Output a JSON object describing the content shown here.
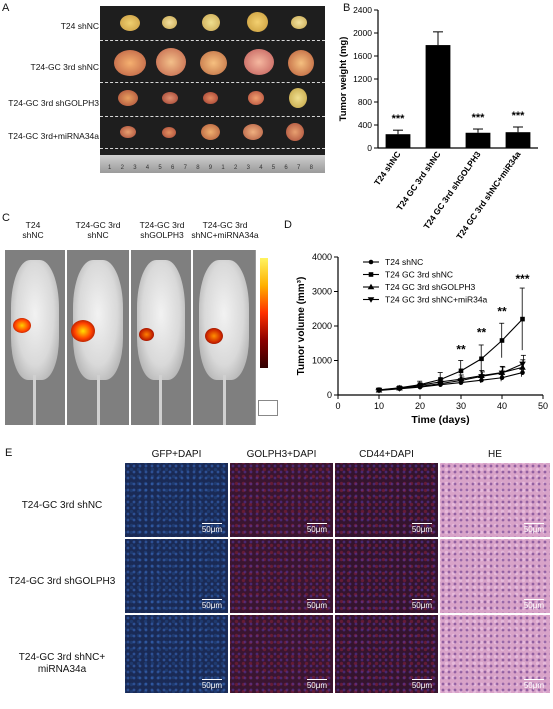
{
  "panels": {
    "a": "A",
    "b": "B",
    "c": "C",
    "d": "D",
    "e": "E"
  },
  "panelA": {
    "rows": [
      "T24 shNC",
      "T24-GC 3rd shNC",
      "T24-GC 3rd shGOLPH3",
      "T24-GC 3rd+miRNA34a"
    ],
    "ruler": [
      "1",
      "2",
      "3",
      "4",
      "5",
      "6",
      "7",
      "8",
      "9",
      "1",
      "2",
      "3",
      "4",
      "5",
      "6",
      "7",
      "8"
    ]
  },
  "panelC": {
    "columns": [
      [
        "T24",
        "shNC"
      ],
      [
        "T24-GC 3rd",
        "shNC"
      ],
      [
        "T24-GC 3rd",
        "shGOLPH3"
      ],
      [
        "T24-GC 3rd",
        "shNC+miRNA34a"
      ]
    ]
  },
  "panelE": {
    "columns": [
      "GFP+DAPI",
      "GOLPH3+DAPI",
      "CD44+DAPI",
      "HE"
    ],
    "rows": [
      [
        "T24-GC 3rd shNC"
      ],
      [
        "T24-GC 3rd shGOLPH3"
      ],
      [
        "T24-GC 3rd shNC+",
        "miRNA34a"
      ]
    ],
    "scalebar": "50μm"
  },
  "colors": {
    "gfp": "#1a2a55",
    "golph3": "#3a1530",
    "cd44": "#34142e",
    "he": "#d8a3c8"
  },
  "chart_data": [
    {
      "type": "bar",
      "categories": [
        "T24 shNC",
        "T24 GC 3rd shNC",
        "T24 GC 3rd shGOLPH3",
        "T24 GC 3rd shNC+miR34a"
      ],
      "values": [
        240,
        1790,
        265,
        275
      ],
      "errors": [
        70,
        230,
        65,
        90
      ],
      "significance": [
        "***",
        "",
        "***",
        "***"
      ],
      "ylabel": "Tumor weight (mg)",
      "ylim": [
        0,
        2400
      ],
      "yticks": [
        0,
        400,
        800,
        1200,
        1600,
        2000,
        2400
      ]
    },
    {
      "type": "line",
      "x": [
        10,
        15,
        20,
        25,
        30,
        35,
        40,
        45
      ],
      "series": [
        {
          "name": "T24 shNC",
          "marker": "circle",
          "values": [
            130,
            180,
            230,
            300,
            360,
            430,
            500,
            650
          ],
          "errors": [
            20,
            30,
            40,
            60,
            70,
            80,
            100,
            120
          ]
        },
        {
          "name": "T24 GC 3rd shNC",
          "marker": "square",
          "values": [
            150,
            210,
            300,
            450,
            700,
            1050,
            1580,
            2200
          ],
          "errors": [
            20,
            40,
            100,
            200,
            300,
            400,
            500,
            900
          ]
        },
        {
          "name": "T24 GC 3rd shGOLPH3",
          "marker": "triangle-up",
          "values": [
            140,
            200,
            280,
            380,
            460,
            560,
            650,
            800
          ],
          "errors": [
            20,
            40,
            60,
            80,
            120,
            150,
            180,
            220
          ]
        },
        {
          "name": "T24 GC 3rd shNC+miR34a",
          "marker": "triangle-down",
          "values": [
            140,
            190,
            250,
            330,
            420,
            540,
            640,
            900
          ],
          "errors": [
            20,
            30,
            50,
            70,
            100,
            130,
            170,
            250
          ]
        }
      ],
      "significance": [
        {
          "x": 30,
          "label": "**"
        },
        {
          "x": 35,
          "label": "**"
        },
        {
          "x": 40,
          "label": "**"
        },
        {
          "x": 45,
          "label": "***"
        }
      ],
      "xlabel": "Time (days)",
      "ylabel": "Tumor volume (mm³)",
      "xlim": [
        0,
        50
      ],
      "ylim": [
        0,
        4000
      ],
      "xticks": [
        0,
        10,
        20,
        30,
        40,
        50
      ],
      "yticks": [
        0,
        1000,
        2000,
        3000,
        4000
      ]
    }
  ]
}
